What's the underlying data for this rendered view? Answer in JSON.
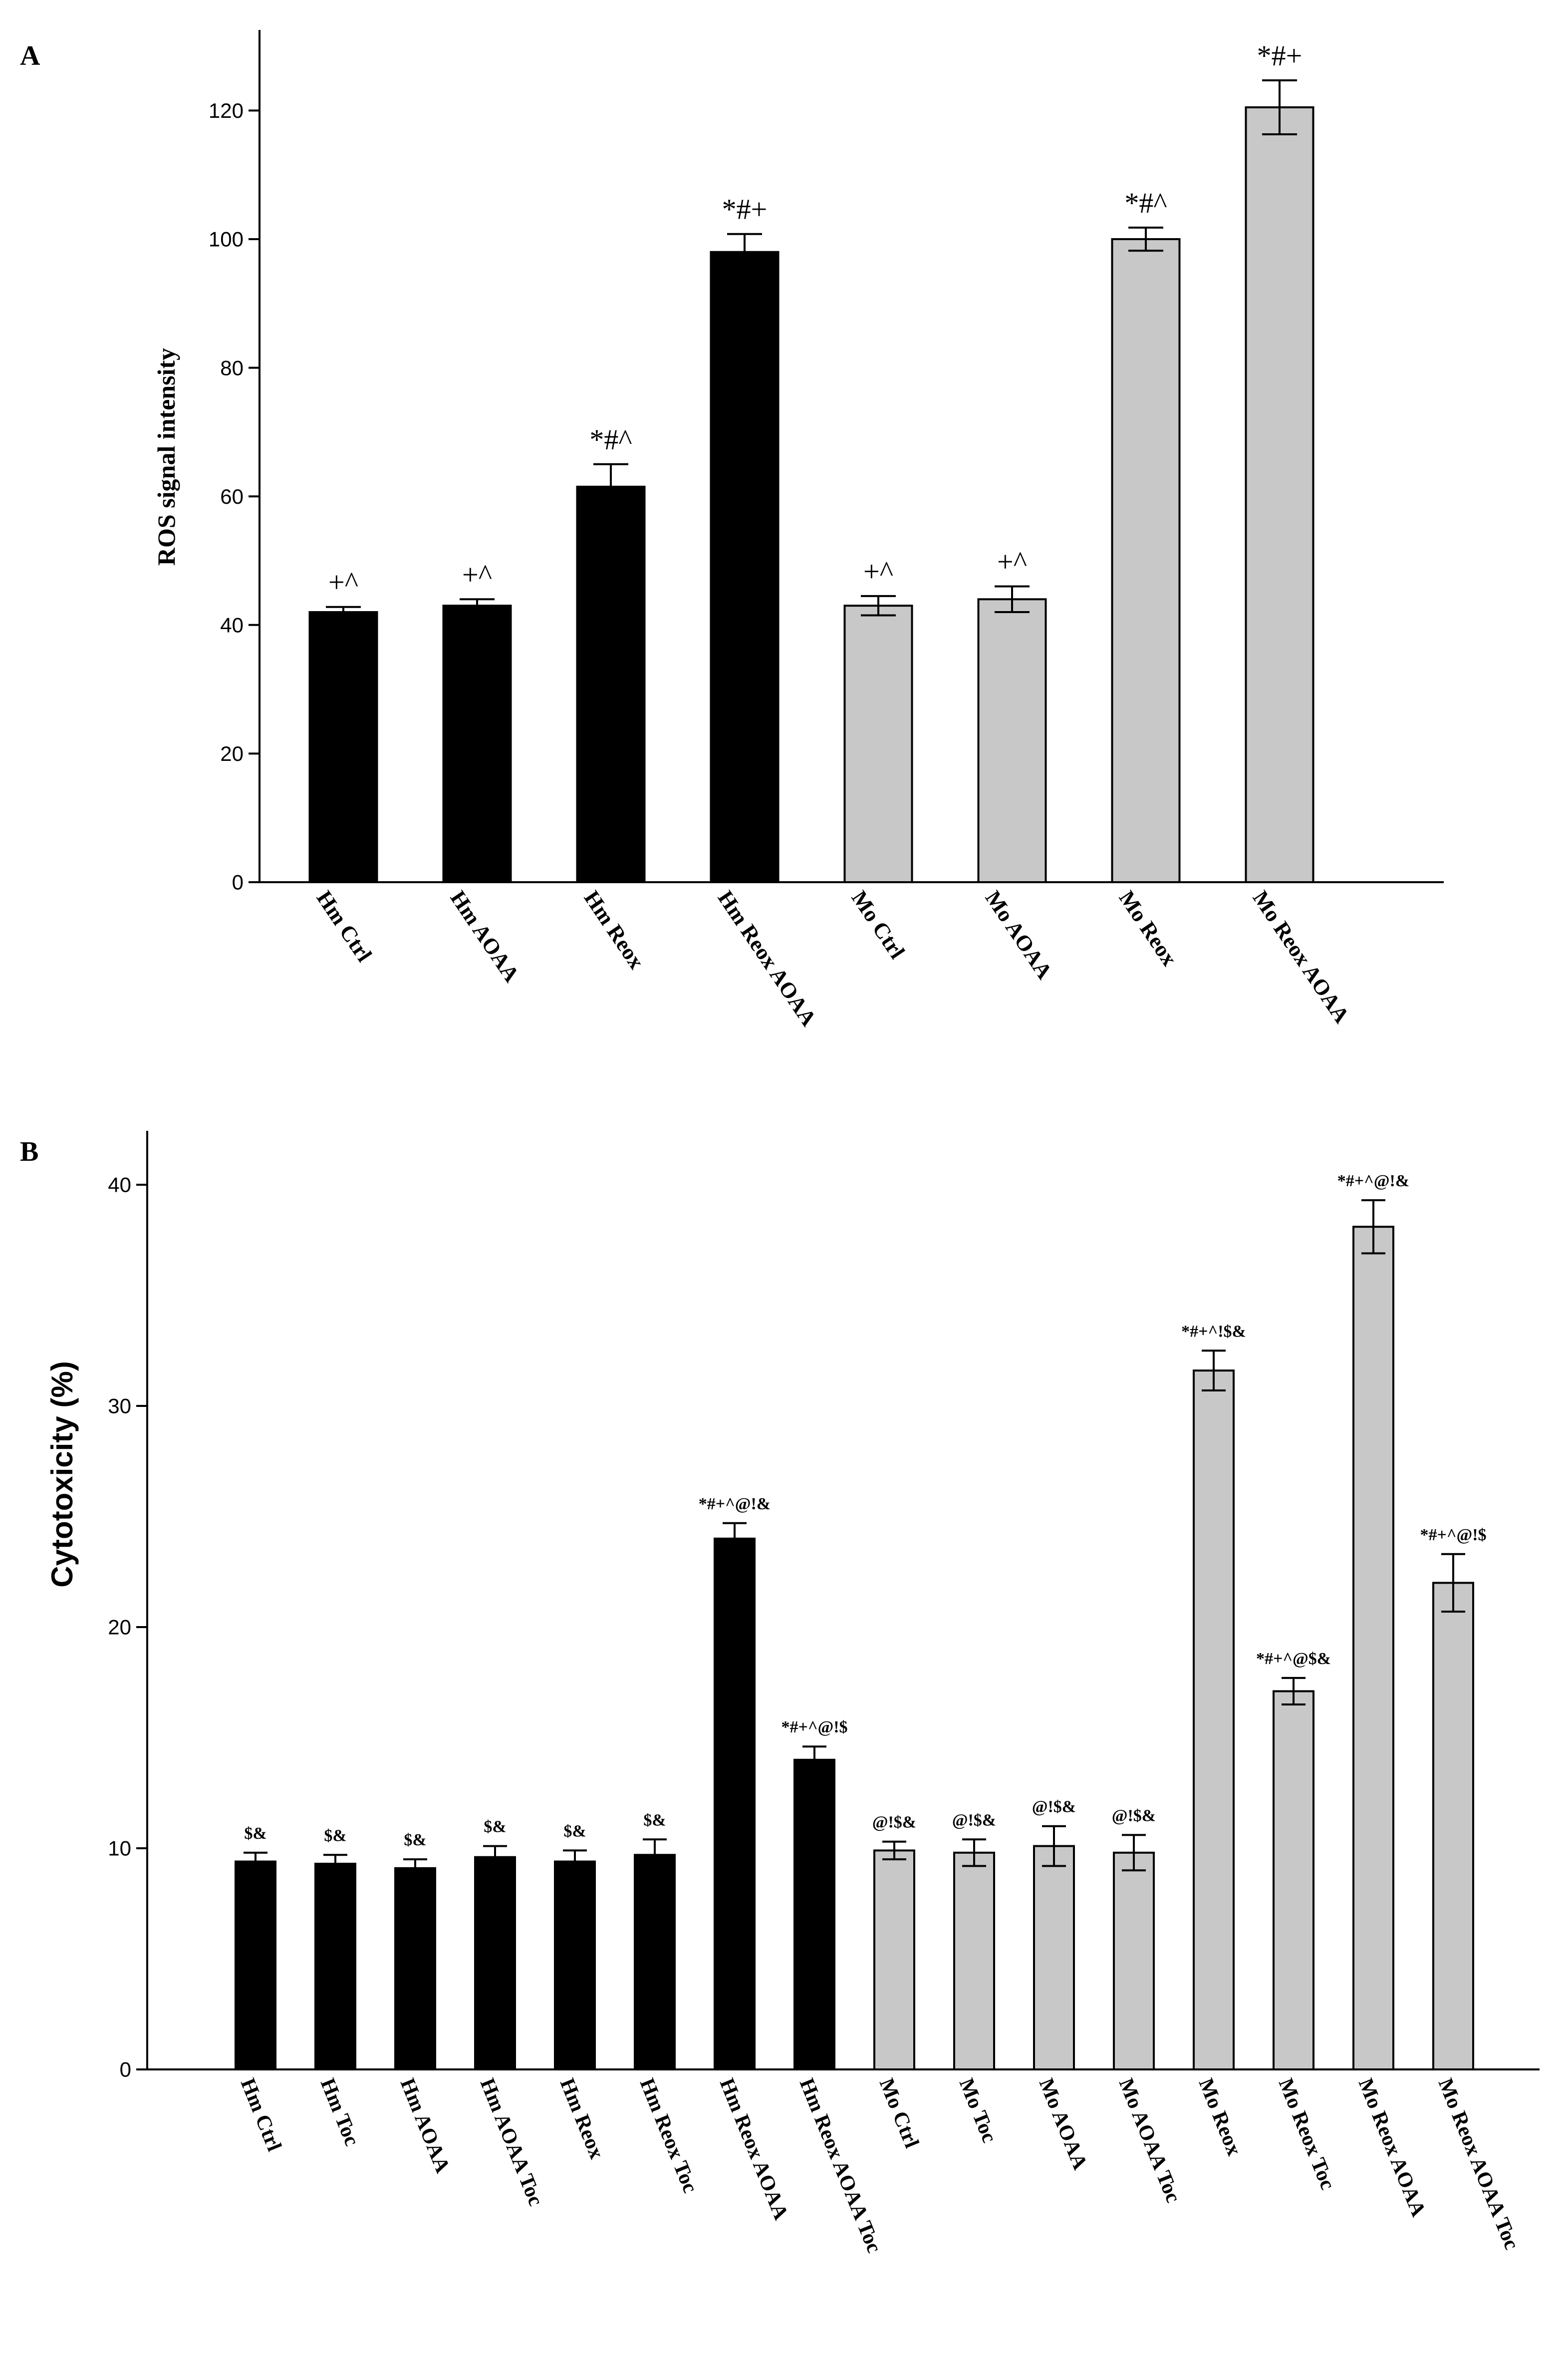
{
  "colors": {
    "hm": "#000000",
    "mo": "#c8c8c8",
    "axis": "#000000"
  },
  "chart_data": [
    {
      "panel": "A",
      "type": "bar",
      "title": "",
      "xlabel": "",
      "ylabel": "ROS signal intensity",
      "ylim": [
        0,
        130
      ],
      "yticks": [
        0,
        20,
        40,
        60,
        80,
        100,
        120
      ],
      "categories": [
        "Hm Ctrl",
        "Hm AOAA",
        "Hm Reox",
        "Hm Reox AOAA",
        "Mo Ctrl",
        "Mo AOAA",
        "Mo Reox",
        "Mo Reox AOAA"
      ],
      "values": [
        42,
        43,
        61.5,
        98,
        43,
        44,
        100,
        120.5
      ],
      "errors": [
        0.8,
        1.0,
        3.5,
        2.8,
        1.5,
        2.0,
        1.8,
        4.2
      ],
      "groups": [
        "hm",
        "hm",
        "hm",
        "hm",
        "mo",
        "mo",
        "mo",
        "mo"
      ],
      "annotations": [
        "+^",
        "+^",
        "*#^",
        "*#+",
        "+^",
        "+^",
        "*#^",
        "*#+"
      ]
    },
    {
      "panel": "B",
      "type": "bar",
      "title": "",
      "xlabel": "",
      "ylabel": "Cytotoxicity (%)",
      "ylim": [
        0,
        42
      ],
      "yticks": [
        0,
        10,
        20,
        30,
        40
      ],
      "categories": [
        "Hm Ctrl",
        "Hm Toc",
        "Hm AOAA",
        "Hm AOAA Toc",
        "Hm Reox",
        "Hm Reox Toc",
        "Hm Reox AOAA",
        "Hm Reox AOAA Toc",
        "Mo Ctrl",
        "Mo Toc",
        "Mo AOAA",
        "Mo AOAA Toc",
        "Mo Reox",
        "Mo Reox Toc",
        "Mo Reox AOAA",
        "Mo Reox AOAA Toc"
      ],
      "values": [
        9.4,
        9.3,
        9.1,
        9.6,
        9.4,
        9.7,
        24.0,
        14.0,
        9.9,
        9.8,
        10.1,
        9.8,
        31.6,
        17.1,
        38.1,
        22.0
      ],
      "errors": [
        0.4,
        0.4,
        0.4,
        0.5,
        0.5,
        0.7,
        0.7,
        0.6,
        0.4,
        0.6,
        0.9,
        0.8,
        0.9,
        0.6,
        1.2,
        1.3
      ],
      "groups": [
        "hm",
        "hm",
        "hm",
        "hm",
        "hm",
        "hm",
        "hm",
        "hm",
        "mo",
        "mo",
        "mo",
        "mo",
        "mo",
        "mo",
        "mo",
        "mo"
      ],
      "annotations": [
        "$&",
        "$&",
        "$&",
        "$&",
        "$&",
        "$&",
        "*#+^@!&",
        "*#+^@!$",
        "@!$&",
        "@!$&",
        "@!$&",
        "@!$&",
        "*#+^!$&",
        "*#+^@$&",
        "*#+^@!&",
        "*#+^@!$"
      ]
    }
  ]
}
